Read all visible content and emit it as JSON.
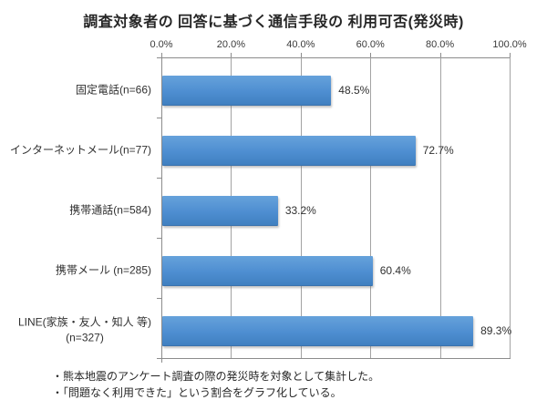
{
  "title": "調査対象者の 回答に基づく通信手段の 利用可否(発災時)",
  "chart_data": {
    "type": "bar",
    "orientation": "horizontal",
    "title": "調査対象者の 回答に基づく通信手段の 利用可否(発災時)",
    "categories": [
      "固定電話(n=66)",
      "インターネットメール(n=77)",
      "携帯通話(n=584)",
      "携帯メール (n=285)",
      "LINE(家族・友人・知人 等) (n=327)"
    ],
    "category_lines": [
      [
        "固定電話(n=66)"
      ],
      [
        "インターネットメール(n=77)"
      ],
      [
        "携帯通話(n=584)"
      ],
      [
        "携帯メール (n=285)"
      ],
      [
        "LINE(家族・友人・知人 等)",
        "(n=327)"
      ]
    ],
    "values": [
      48.5,
      72.7,
      33.2,
      60.4,
      89.3
    ],
    "data_labels": [
      "48.5%",
      "72.7%",
      "33.2%",
      "60.4%",
      "89.3%"
    ],
    "x_ticks": [
      {
        "label": "0.0%",
        "value": 0
      },
      {
        "label": "20.0%",
        "value": 20
      },
      {
        "label": "40.0%",
        "value": 40
      },
      {
        "label": "60.0%",
        "value": 60
      },
      {
        "label": "80.0%",
        "value": 80
      },
      {
        "label": "100.0%",
        "value": 100
      }
    ],
    "xlim": [
      0,
      100
    ],
    "axis_position": "top",
    "grid": true,
    "legend": false,
    "colors": {
      "bar_top": "#66a2db",
      "bar_bottom": "#4080c0",
      "gridline": "#a3a3a3",
      "axis": "#8c8c8c",
      "text": "#303030"
    }
  },
  "footnotes": [
    "・熊本地震のアンケート調査の際の発災時を対象として集計した。",
    "・「問題なく利用できた」という割合をグラフ化している。"
  ]
}
